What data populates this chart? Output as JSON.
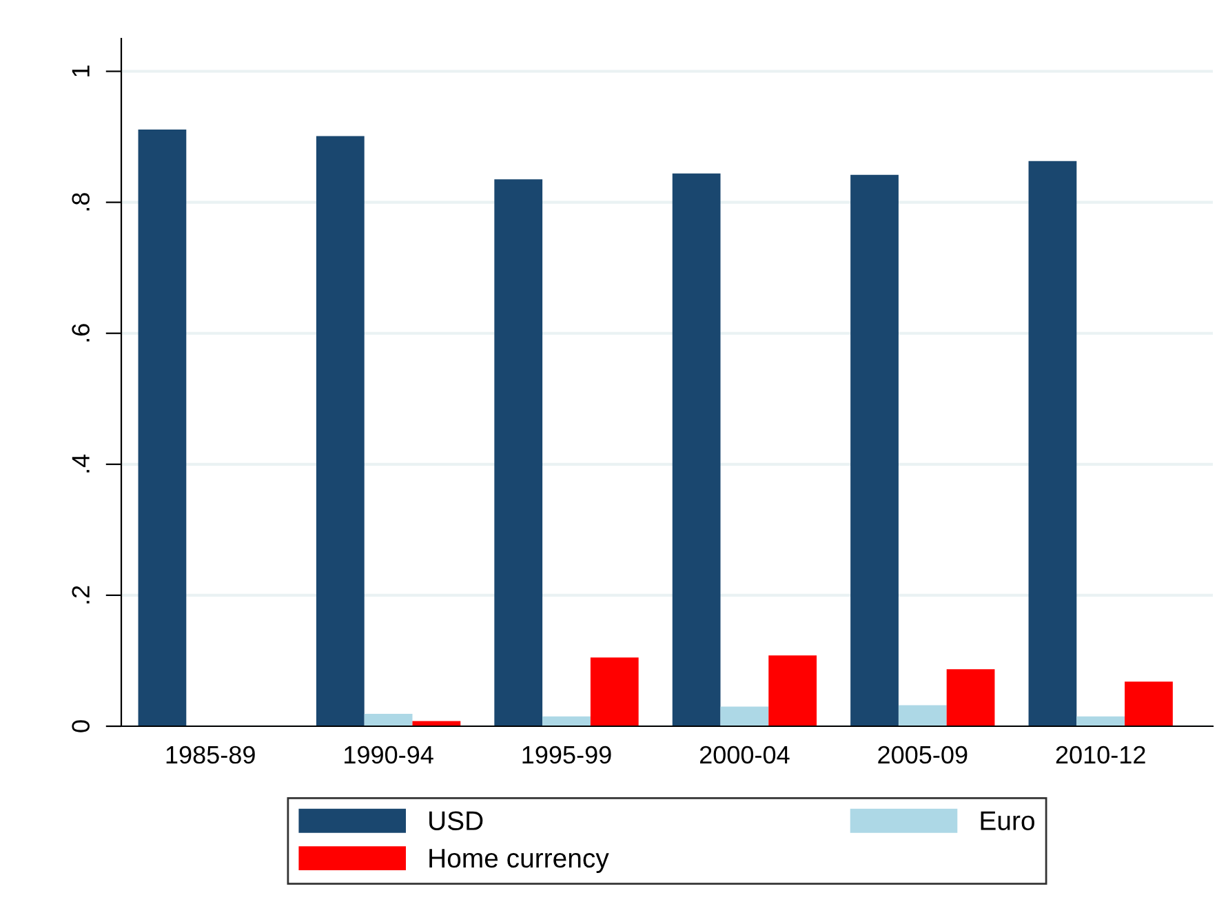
{
  "chart_data": {
    "type": "bar",
    "categories": [
      "1985-89",
      "1990-94",
      "1995-99",
      "2000-04",
      "2005-09",
      "2010-12"
    ],
    "series": [
      {
        "name": "USD",
        "color": "#1a476f",
        "values": [
          0.911,
          0.901,
          0.835,
          0.844,
          0.842,
          0.863
        ]
      },
      {
        "name": "Euro",
        "color": "#add8e6",
        "values": [
          null,
          0.019,
          0.015,
          0.03,
          0.032,
          0.015
        ]
      },
      {
        "name": "Home currency",
        "color": "#ff0000",
        "values": [
          null,
          0.008,
          0.105,
          0.108,
          0.087,
          0.068
        ]
      }
    ],
    "ylim": [
      0,
      1.05
    ],
    "yticks": [
      0,
      {
        "value": 0.2,
        "label": ".2"
      },
      {
        "value": 0.4,
        "label": ".4"
      },
      {
        "value": 0.6,
        "label": ".6"
      },
      {
        "value": 0.8,
        "label": ".8"
      },
      1
    ],
    "grid": "y",
    "legend": "bottom"
  }
}
